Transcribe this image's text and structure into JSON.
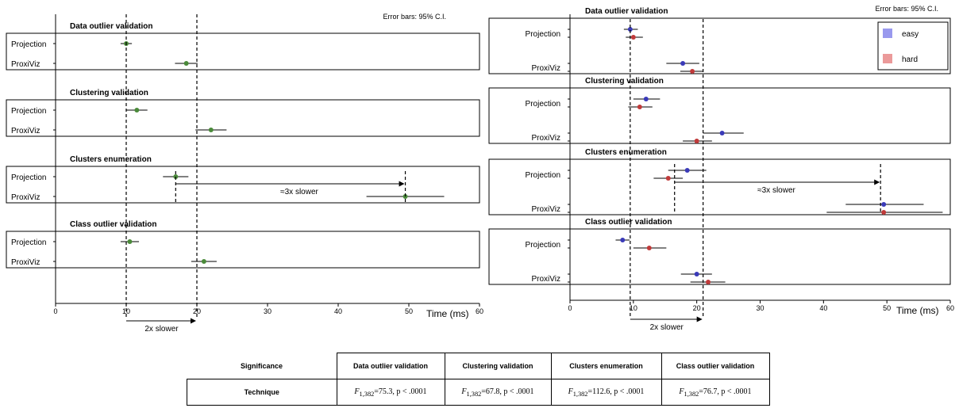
{
  "chart_data": [
    {
      "type": "dot-plot with error bars",
      "note": "Error bars: 95% C.I.",
      "xlabel": "Time (ms)",
      "xlim": [
        0,
        60
      ],
      "xticks": [
        "0",
        "10",
        "20",
        "30",
        "40",
        "50",
        "60"
      ],
      "panels": [
        {
          "title": "Data outlier validation",
          "rows": [
            {
              "label": "Projection",
              "points": [
                {
                  "mean": 10,
                  "lo": 9.2,
                  "hi": 10.8,
                  "color": "#4a8a3a"
                }
              ]
            },
            {
              "label": "ProxiViz",
              "points": [
                {
                  "mean": 18.5,
                  "lo": 16.9,
                  "hi": 20.1,
                  "color": "#4a8a3a"
                }
              ]
            }
          ]
        },
        {
          "title": "Clustering validation",
          "rows": [
            {
              "label": "Projection",
              "points": [
                {
                  "mean": 11.5,
                  "lo": 10.0,
                  "hi": 13.0,
                  "color": "#4a8a3a"
                }
              ]
            },
            {
              "label": "ProxiViz",
              "points": [
                {
                  "mean": 22.0,
                  "lo": 19.8,
                  "hi": 24.2,
                  "color": "#4a8a3a"
                }
              ]
            }
          ]
        },
        {
          "title": "Clusters enumeration",
          "rows": [
            {
              "label": "Projection",
              "points": [
                {
                  "mean": 17.0,
                  "lo": 15.2,
                  "hi": 18.8,
                  "color": "#4a8a3a"
                }
              ]
            },
            {
              "label": "ProxiViz",
              "points": [
                {
                  "mean": 49.5,
                  "lo": 44.0,
                  "hi": 55.0,
                  "color": "#4a8a3a"
                }
              ]
            }
          ]
        },
        {
          "title": "Class outlier validation",
          "rows": [
            {
              "label": "Projection",
              "points": [
                {
                  "mean": 10.5,
                  "lo": 9.2,
                  "hi": 11.8,
                  "color": "#4a8a3a"
                }
              ]
            },
            {
              "label": "ProxiViz",
              "points": [
                {
                  "mean": 21.0,
                  "lo": 19.2,
                  "hi": 22.8,
                  "color": "#4a8a3a"
                }
              ]
            }
          ]
        }
      ],
      "annotations": {
        "bottom": "2x slower",
        "cluster": "≈3x slower"
      }
    },
    {
      "type": "dot-plot with error bars",
      "note": "Error bars: 95% C.I.",
      "xlabel": "Time (ms)",
      "xlim": [
        0,
        60
      ],
      "xticks": [
        "0",
        "10",
        "20",
        "30",
        "40",
        "50",
        "60"
      ],
      "legend": [
        {
          "name": "easy",
          "color": "#9999ee"
        },
        {
          "name": "hard",
          "color": "#eb9a9a"
        }
      ],
      "panels": [
        {
          "title": "Data outlier validation",
          "rows": [
            {
              "label": "Projection",
              "points": [
                {
                  "mean": 9.5,
                  "lo": 8.5,
                  "hi": 10.7,
                  "color": "#3a3ab8"
                },
                {
                  "mean": 10.0,
                  "lo": 8.8,
                  "hi": 11.5,
                  "color": "#c03a3a"
                }
              ]
            },
            {
              "label": "ProxiViz",
              "points": [
                {
                  "mean": 17.8,
                  "lo": 15.2,
                  "hi": 20.4,
                  "color": "#3a3ab8"
                },
                {
                  "mean": 19.3,
                  "lo": 17.4,
                  "hi": 21.0,
                  "color": "#c03a3a"
                }
              ]
            }
          ]
        },
        {
          "title": "Clustering validation",
          "rows": [
            {
              "label": "Projection",
              "points": [
                {
                  "mean": 12.0,
                  "lo": 10.0,
                  "hi": 14.2,
                  "color": "#3a3ab8"
                },
                {
                  "mean": 11.0,
                  "lo": 9.2,
                  "hi": 13.0,
                  "color": "#c03a3a"
                }
              ]
            },
            {
              "label": "ProxiViz",
              "points": [
                {
                  "mean": 24.0,
                  "lo": 21.0,
                  "hi": 27.4,
                  "color": "#3a3ab8"
                },
                {
                  "mean": 20.0,
                  "lo": 17.8,
                  "hi": 22.4,
                  "color": "#c03a3a"
                }
              ]
            }
          ]
        },
        {
          "title": "Clusters enumeration",
          "rows": [
            {
              "label": "Projection",
              "points": [
                {
                  "mean": 18.5,
                  "lo": 15.5,
                  "hi": 21.5,
                  "color": "#3a3ab8"
                },
                {
                  "mean": 15.5,
                  "lo": 13.2,
                  "hi": 17.8,
                  "color": "#c03a3a"
                }
              ]
            },
            {
              "label": "ProxiViz",
              "points": [
                {
                  "mean": 49.5,
                  "lo": 43.5,
                  "hi": 55.8,
                  "color": "#3a3ab8"
                },
                {
                  "mean": 49.5,
                  "lo": 40.5,
                  "hi": 58.8,
                  "color": "#c03a3a"
                }
              ]
            }
          ]
        },
        {
          "title": "Class outlier validation",
          "rows": [
            {
              "label": "Projection",
              "points": [
                {
                  "mean": 8.3,
                  "lo": 7.2,
                  "hi": 9.4,
                  "color": "#3a3ab8"
                },
                {
                  "mean": 12.5,
                  "lo": 10.0,
                  "hi": 15.2,
                  "color": "#c03a3a"
                }
              ]
            },
            {
              "label": "ProxiViz",
              "points": [
                {
                  "mean": 20.0,
                  "lo": 17.5,
                  "hi": 22.4,
                  "color": "#3a3ab8"
                },
                {
                  "mean": 21.8,
                  "lo": 19.0,
                  "hi": 24.5,
                  "color": "#c03a3a"
                }
              ]
            }
          ]
        }
      ],
      "annotations": {
        "bottom": "2x slower",
        "cluster": "≈3x slower"
      }
    }
  ],
  "table": {
    "corner": "Significance",
    "headers": [
      "Data outlier validation",
      "Clustering validation",
      "Clusters enumeration",
      "Class outlier validation"
    ],
    "row_label": "Technique",
    "stat_prefix": "F",
    "stat_sub": "1,382",
    "values": [
      "=75.3, p < .0001",
      "=67.8, p < .0001",
      "=112.6, p < .0001",
      "=76.7, p < .0001"
    ]
  }
}
